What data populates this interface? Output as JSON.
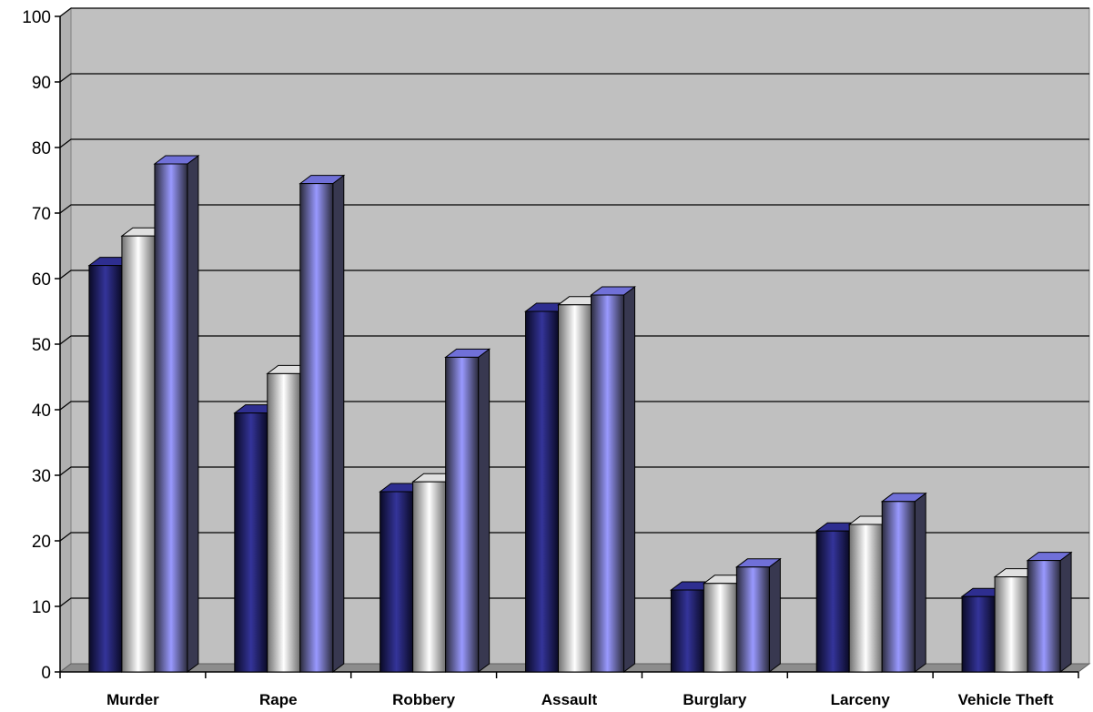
{
  "chart_data": {
    "type": "bar",
    "style": "3d-clustered-column",
    "title": "",
    "xlabel": "",
    "ylabel": "",
    "ylim": [
      0,
      100
    ],
    "yticks": [
      0,
      10,
      20,
      30,
      40,
      50,
      60,
      70,
      80,
      90,
      100
    ],
    "grid": true,
    "legend": "none",
    "categories": [
      "Murder",
      "Rape",
      "Robbery",
      "Assault",
      "Burglary",
      "Larceny",
      "Vehicle Theft"
    ],
    "series": [
      {
        "values": [
          62,
          39.5,
          27.5,
          55,
          12.5,
          21.5,
          11.5
        ]
      },
      {
        "values": [
          66.5,
          45.5,
          29,
          56,
          13.5,
          22.5,
          14.5
        ]
      },
      {
        "values": [
          77.5,
          74.5,
          48,
          57.5,
          16,
          26,
          17
        ]
      }
    ],
    "colors": {
      "plot_background": "#c0c0c0",
      "series_gradients": [
        [
          "#0a0a26",
          "#34349a",
          "#0a0a26"
        ],
        [
          "#6f6f6f",
          "#ffffff",
          "#6f6f6f"
        ],
        [
          "#2b2b3c",
          "#9999ff",
          "#2b2b3c"
        ]
      ],
      "series_tops": [
        "#2e2e90",
        "#e0e0e0",
        "#7070d8"
      ],
      "series_sides": [
        "#0a0a2a",
        "#6a6a6a",
        "#383850"
      ]
    }
  }
}
